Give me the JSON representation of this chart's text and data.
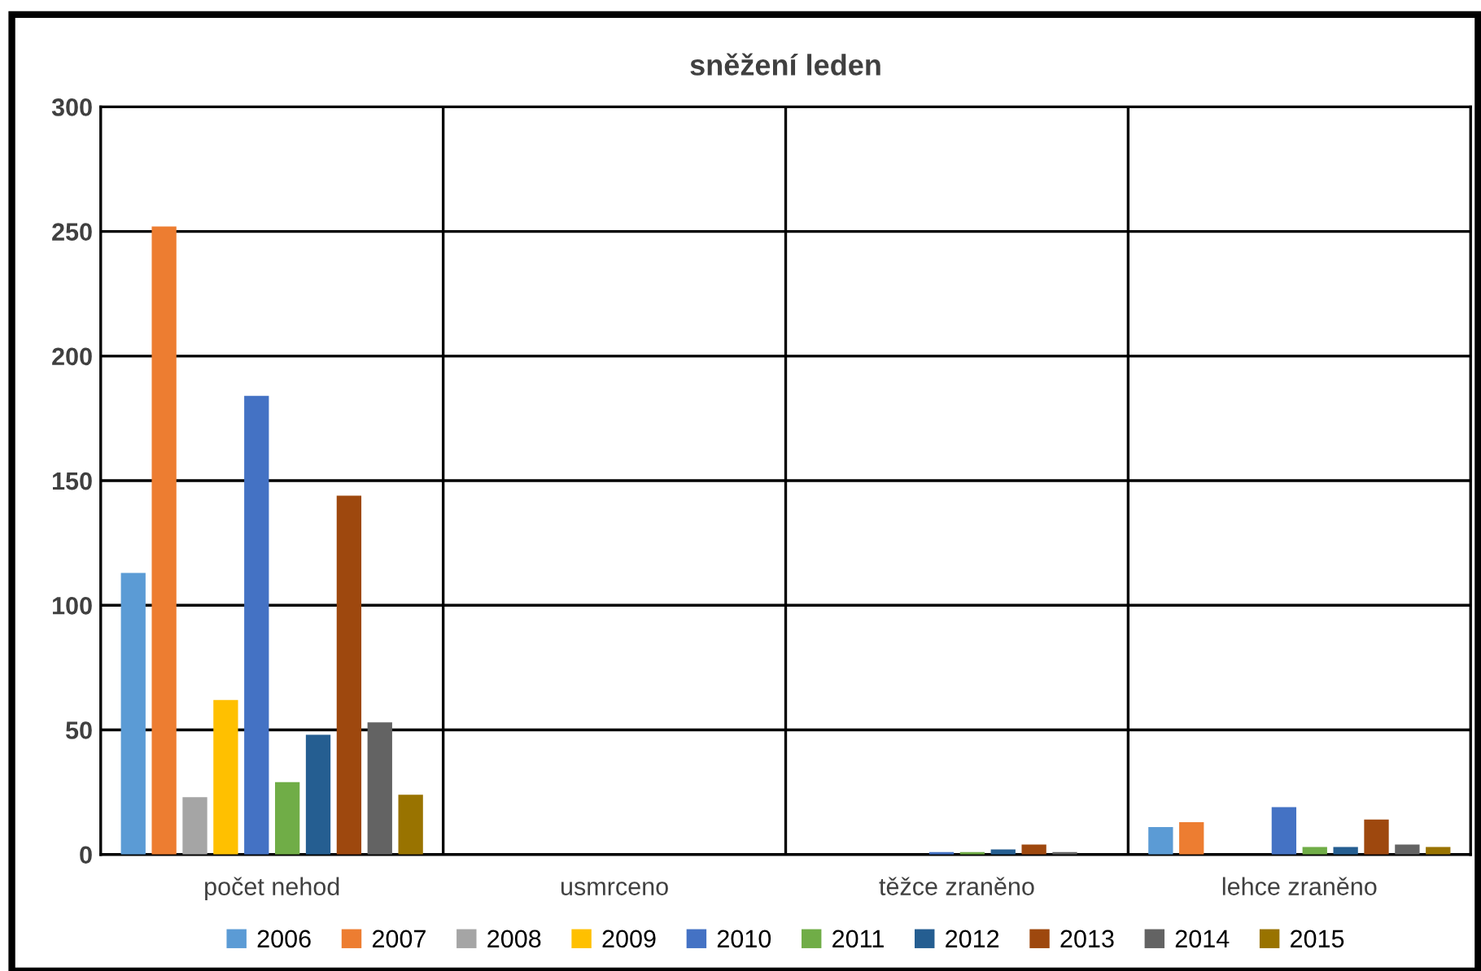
{
  "chart_data": {
    "type": "bar",
    "title": "sněžení leden",
    "categories": [
      "počet nehod",
      "usmrceno",
      "těžce zraněno",
      "lehce zraněno"
    ],
    "series": [
      {
        "name": "2006",
        "color": "#5b9bd5",
        "values": [
          113,
          0,
          0,
          11
        ]
      },
      {
        "name": "2007",
        "color": "#ed7d31",
        "values": [
          252,
          0,
          0,
          13
        ]
      },
      {
        "name": "2008",
        "color": "#a5a5a5",
        "values": [
          23,
          0,
          0,
          0
        ]
      },
      {
        "name": "2009",
        "color": "#ffc000",
        "values": [
          62,
          0,
          0,
          0
        ]
      },
      {
        "name": "2010",
        "color": "#4472c4",
        "values": [
          184,
          0,
          1,
          19
        ]
      },
      {
        "name": "2011",
        "color": "#70ad47",
        "values": [
          29,
          0,
          1,
          3
        ]
      },
      {
        "name": "2012",
        "color": "#255e91",
        "values": [
          48,
          0,
          2,
          3
        ]
      },
      {
        "name": "2013",
        "color": "#9e480e",
        "values": [
          144,
          0,
          4,
          14
        ]
      },
      {
        "name": "2014",
        "color": "#636363",
        "values": [
          53,
          0,
          1,
          4
        ]
      },
      {
        "name": "2015",
        "color": "#997300",
        "values": [
          24,
          0,
          0,
          3
        ]
      }
    ],
    "ylim": [
      0,
      300
    ],
    "yticks": [
      0,
      50,
      100,
      150,
      200,
      250,
      300
    ],
    "grid": true,
    "legend": "bottom"
  }
}
